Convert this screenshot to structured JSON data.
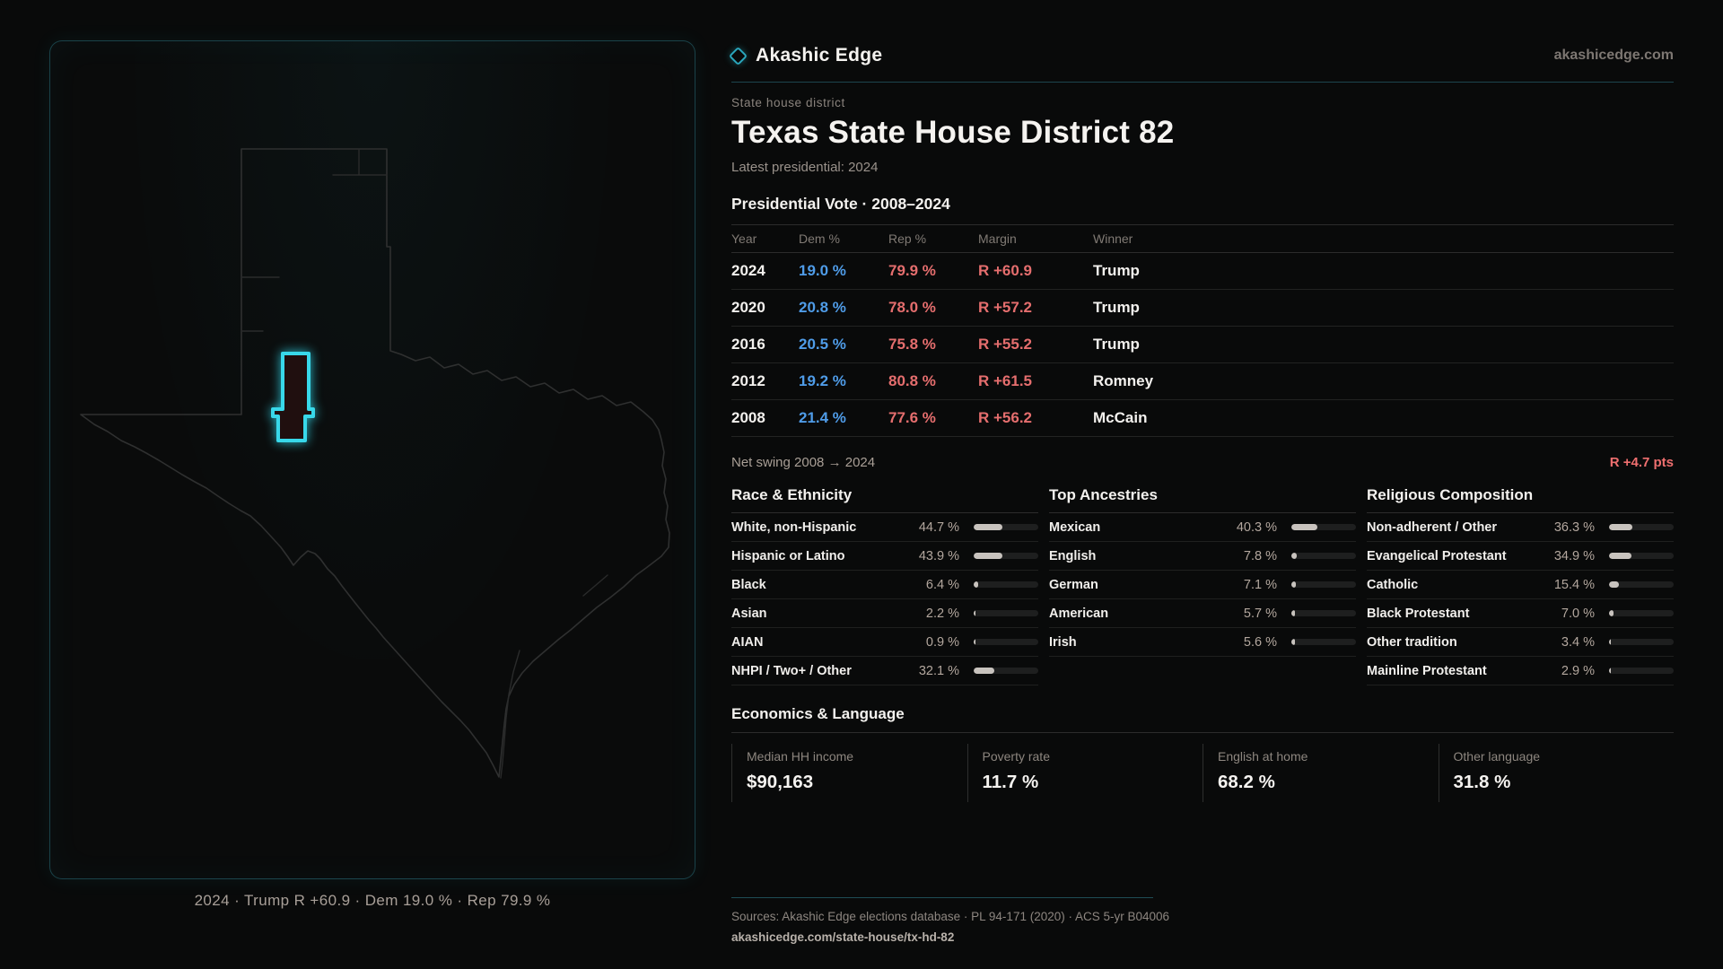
{
  "brand": {
    "name": "Akashic Edge",
    "domain": "akashicedge.com"
  },
  "page": {
    "kicker": "State house district",
    "title": "Texas State House District 82",
    "subtitle": "Latest presidential: 2024"
  },
  "map": {
    "caption": "2024 · Trump R +60.9 · Dem 19.0 % · Rep 79.9 %"
  },
  "vote_table": {
    "title": "Presidential Vote · 2008–2024",
    "columns": [
      "Year",
      "Dem %",
      "Rep %",
      "Margin",
      "Winner"
    ],
    "rows": [
      {
        "year": "2024",
        "dem": "19.0 %",
        "rep": "79.9 %",
        "margin": "R +60.9",
        "winner": "Trump"
      },
      {
        "year": "2020",
        "dem": "20.8 %",
        "rep": "78.0 %",
        "margin": "R +57.2",
        "winner": "Trump"
      },
      {
        "year": "2016",
        "dem": "20.5 %",
        "rep": "75.8 %",
        "margin": "R +55.2",
        "winner": "Trump"
      },
      {
        "year": "2012",
        "dem": "19.2 %",
        "rep": "80.8 %",
        "margin": "R +61.5",
        "winner": "Romney"
      },
      {
        "year": "2008",
        "dem": "21.4 %",
        "rep": "77.6 %",
        "margin": "R +56.2",
        "winner": "McCain"
      }
    ]
  },
  "net_swing": {
    "label": "Net swing 2008 → 2024",
    "value": "R +4.7 pts"
  },
  "demographics": [
    {
      "title": "Race & Ethnicity",
      "rows": [
        {
          "label": "White, non-Hispanic",
          "value": "44.7 %",
          "pct": 44.7
        },
        {
          "label": "Hispanic or Latino",
          "value": "43.9 %",
          "pct": 43.9
        },
        {
          "label": "Black",
          "value": "6.4 %",
          "pct": 6.4
        },
        {
          "label": "Asian",
          "value": "2.2 %",
          "pct": 2.2
        },
        {
          "label": "AIAN",
          "value": "0.9 %",
          "pct": 0.9
        },
        {
          "label": "NHPI / Two+ / Other",
          "value": "32.1 %",
          "pct": 32.1
        }
      ]
    },
    {
      "title": "Top Ancestries",
      "rows": [
        {
          "label": "Mexican",
          "value": "40.3 %",
          "pct": 40.3
        },
        {
          "label": "English",
          "value": "7.8 %",
          "pct": 7.8
        },
        {
          "label": "German",
          "value": "7.1 %",
          "pct": 7.1
        },
        {
          "label": "American",
          "value": "5.7 %",
          "pct": 5.7
        },
        {
          "label": "Irish",
          "value": "5.6 %",
          "pct": 5.6
        }
      ]
    },
    {
      "title": "Religious Composition",
      "rows": [
        {
          "label": "Non-adherent / Other",
          "value": "36.3 %",
          "pct": 36.3
        },
        {
          "label": "Evangelical Protestant",
          "value": "34.9 %",
          "pct": 34.9
        },
        {
          "label": "Catholic",
          "value": "15.4 %",
          "pct": 15.4
        },
        {
          "label": "Black Protestant",
          "value": "7.0 %",
          "pct": 7.0
        },
        {
          "label": "Other tradition",
          "value": "3.4 %",
          "pct": 3.4
        },
        {
          "label": "Mainline Protestant",
          "value": "2.9 %",
          "pct": 2.9
        }
      ]
    }
  ],
  "economics": {
    "title": "Economics & Language",
    "stats": [
      {
        "label": "Median HH income",
        "value": "$90,163"
      },
      {
        "label": "Poverty rate",
        "value": "11.7 %"
      },
      {
        "label": "English at home",
        "value": "68.2 %"
      },
      {
        "label": "Other language",
        "value": "31.8 %"
      }
    ]
  },
  "footer": {
    "sources": "Sources: Akashic Edge elections database · PL 94-171 (2020) · ACS 5-yr B04006",
    "url": "akashicedge.com/state-house/tx-hd-82"
  },
  "colors": {
    "accent_cyan": "#38d8ea",
    "dem_blue": "#4f9ce8",
    "rep_red": "#e56e6e",
    "bar_fill": "#c8c3be"
  }
}
